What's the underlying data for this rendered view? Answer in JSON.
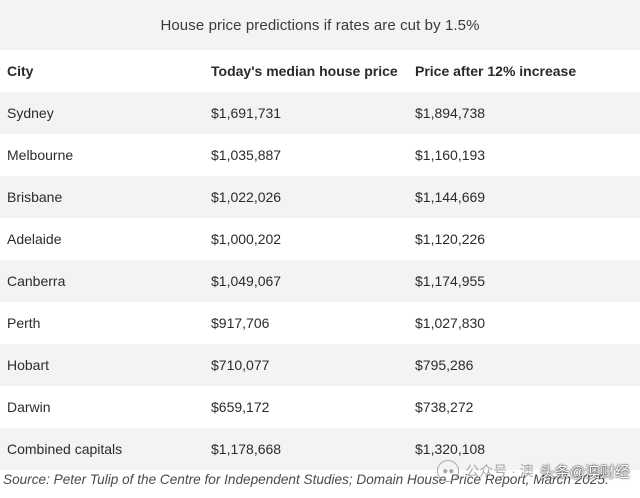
{
  "title": "House price predictions if rates are cut by 1.5%",
  "table": {
    "headers": {
      "city": "City",
      "today": "Today's median house price",
      "after": "Price after 12% increase"
    },
    "rows": [
      {
        "city": "Sydney",
        "today": "$1,691,731",
        "after": "$1,894,738"
      },
      {
        "city": "Melbourne",
        "today": "$1,035,887",
        "after": "$1,160,193"
      },
      {
        "city": "Brisbane",
        "today": "$1,022,026",
        "after": "$1,144,669"
      },
      {
        "city": "Adelaide",
        "today": "$1,000,202",
        "after": "$1,120,226"
      },
      {
        "city": "Canberra",
        "today": "$1,049,067",
        "after": "$1,174,955"
      },
      {
        "city": "Perth",
        "today": "$917,706",
        "after": "$1,027,830"
      },
      {
        "city": "Hobart",
        "today": "$710,077",
        "after": "$795,286"
      },
      {
        "city": "Darwin",
        "today": "$659,172",
        "after": "$738,272"
      },
      {
        "city": "Combined capitals",
        "today": "$1,178,668",
        "after": "$1,320,108"
      }
    ]
  },
  "source": "Source: Peter Tulip of the Centre for Independent Studies; Domain House Price Report, March 2025.",
  "watermark": {
    "label": "公众号 · 澳",
    "handle": "头条@澳财经"
  },
  "colors": {
    "shaded_row": "#f2f3f5",
    "text": "#2b2b2b"
  }
}
